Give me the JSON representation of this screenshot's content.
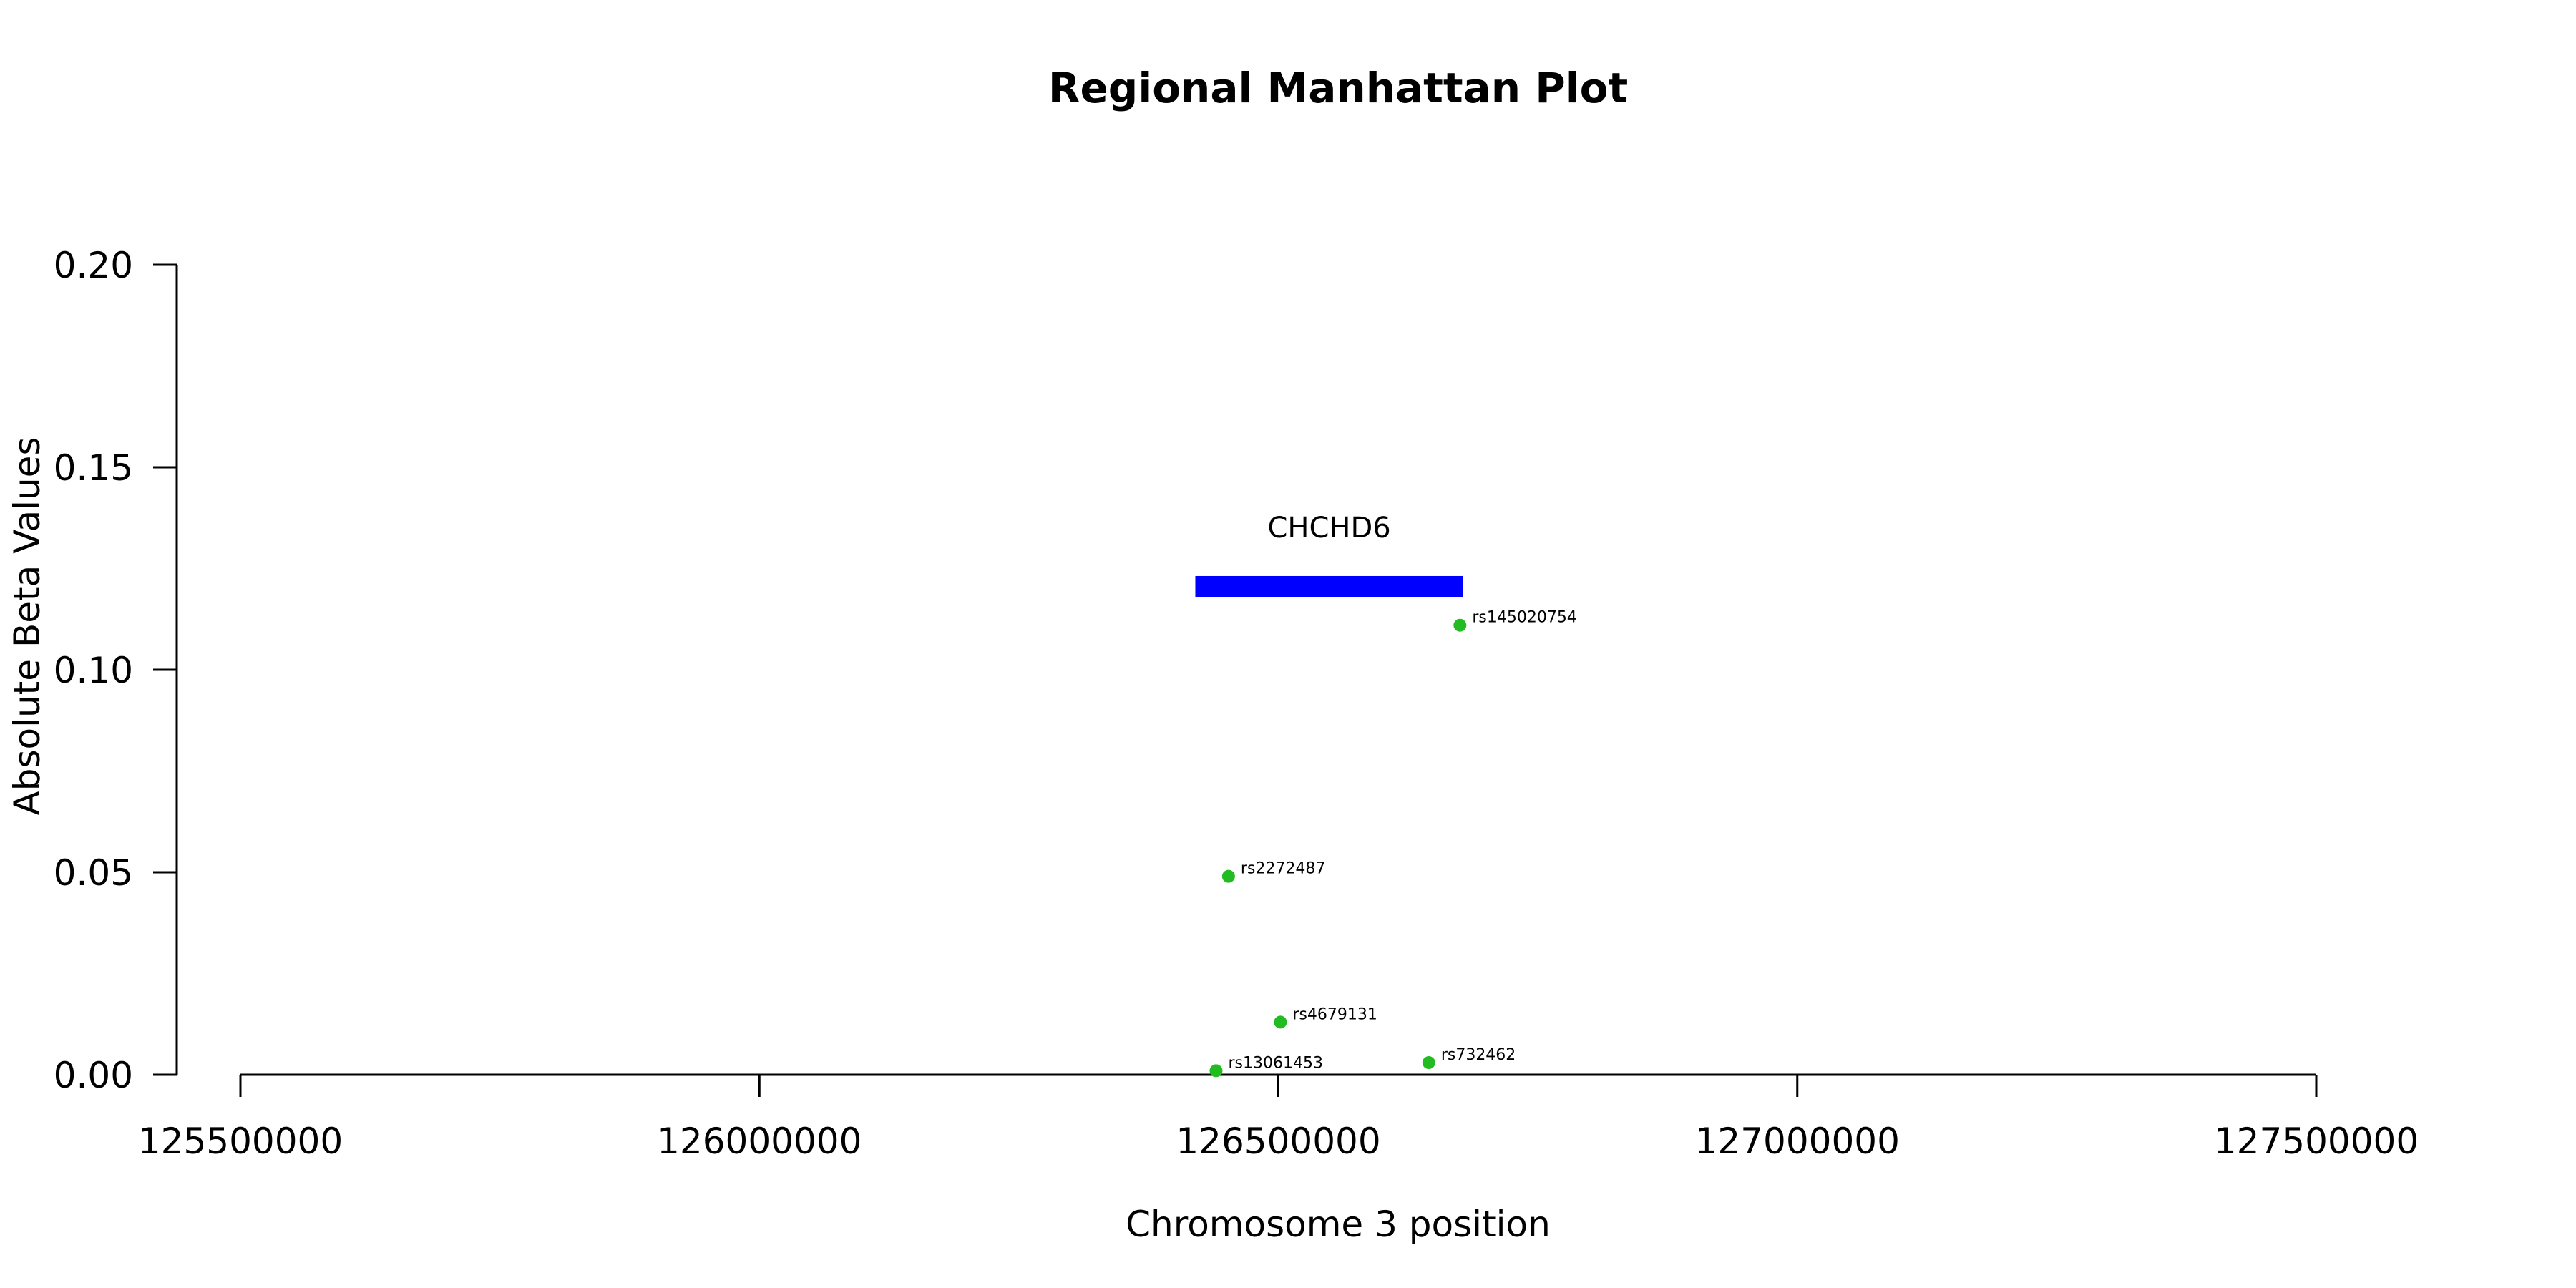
{
  "chart_data": {
    "type": "scatter",
    "title": "Regional Manhattan Plot",
    "xlabel": "Chromosome 3 position",
    "ylabel": "Absolute Beta Values",
    "xlim": [
      125500000,
      127500000
    ],
    "ylim": [
      0,
      0.2
    ],
    "x_ticks": [
      "125500000",
      "126000000",
      "126500000",
      "127000000",
      "127500000"
    ],
    "y_ticks": [
      "0.00",
      "0.05",
      "0.10",
      "0.15",
      "0.20"
    ],
    "grid": false,
    "points": [
      {
        "label": "rs145020754",
        "x": 126675000,
        "y": 0.111
      },
      {
        "label": "rs2272487",
        "x": 126452000,
        "y": 0.049
      },
      {
        "label": "rs4679131",
        "x": 126502000,
        "y": 0.013
      },
      {
        "label": "rs732462",
        "x": 126645000,
        "y": 0.003
      },
      {
        "label": "rs13061453",
        "x": 126440000,
        "y": 0.001
      }
    ],
    "genes": [
      {
        "name": "CHCHD6",
        "start": 126420000,
        "end": 126678000,
        "y": 0.1205
      }
    ],
    "colors": {
      "points": "#22bb22",
      "gene": "#0000ff"
    }
  }
}
